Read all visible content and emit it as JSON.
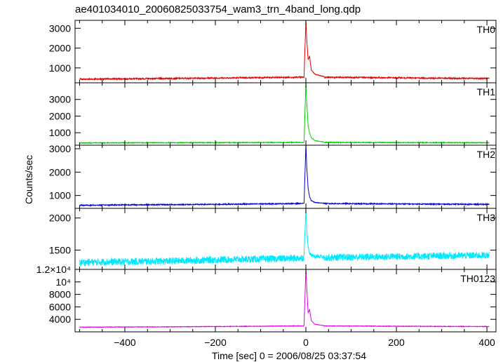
{
  "chart_data": {
    "type": "line",
    "title": "ae401034010_20060825033754_wam3_trn_4band_long.qdp",
    "xlabel": "Time [sec] 0 = 2006/08/25 03:37:54",
    "ylabel": "Counts/sec",
    "xlim": [
      -510,
      420
    ],
    "x_ticks": [
      -400,
      -200,
      0,
      200,
      400
    ],
    "x_tick_labels": [
      "−400",
      "−200",
      "0",
      "200",
      "400"
    ],
    "grid": false,
    "panels": [
      {
        "label": "TH0",
        "color": "#e00000",
        "ylim": [
          250,
          3400
        ],
        "y_ticks": [
          1000,
          2000,
          3000
        ],
        "y_tick_labels": [
          "1000",
          "2000",
          "3000"
        ],
        "background": {
          "x": [
            -500,
            -400,
            -300,
            -200,
            -100,
            0,
            100,
            200,
            300,
            405
          ],
          "y": [
            430,
            450,
            470,
            490,
            510,
            530,
            520,
            500,
            480,
            470
          ]
        },
        "noise": 35,
        "peak": {
          "x": [
            -4,
            0,
            2,
            5,
            8,
            12,
            20,
            40
          ],
          "y": [
            600,
            3400,
            2400,
            1400,
            1600,
            900,
            680,
            560
          ]
        }
      },
      {
        "label": "TH1",
        "color": "#00d000",
        "ylim": [
          250,
          4000
        ],
        "y_ticks": [
          1000,
          2000,
          3000
        ],
        "y_tick_labels": [
          "1000",
          "2000",
          "3000"
        ],
        "background": {
          "x": [
            -500,
            -400,
            -300,
            -200,
            -100,
            0,
            100,
            200,
            300,
            405
          ],
          "y": [
            390,
            395,
            400,
            405,
            410,
            420,
            415,
            410,
            405,
            400
          ]
        },
        "noise": 25,
        "peak": {
          "x": [
            -4,
            0,
            2,
            5,
            8,
            12,
            20,
            40
          ],
          "y": [
            500,
            4000,
            2800,
            1400,
            1000,
            700,
            520,
            450
          ]
        }
      },
      {
        "label": "TH2",
        "color": "#0000d0",
        "ylim": [
          450,
          3150
        ],
        "y_ticks": [
          1000,
          2000,
          3000
        ],
        "y_tick_labels": [
          "1000",
          "2000",
          "3000"
        ],
        "background": {
          "x": [
            -500,
            -400,
            -300,
            -200,
            -100,
            0,
            100,
            200,
            300,
            405
          ],
          "y": [
            580,
            600,
            610,
            620,
            640,
            660,
            650,
            640,
            630,
            620
          ]
        },
        "noise": 22,
        "peak": {
          "x": [
            -4,
            0,
            2,
            5,
            8,
            12,
            20,
            40
          ],
          "y": [
            700,
            3150,
            2200,
            1300,
            950,
            780,
            700,
            670
          ]
        }
      },
      {
        "label": "TH3",
        "color": "#00e8ff",
        "ylim": [
          1200,
          2150
        ],
        "y_ticks": [
          1500,
          2000
        ],
        "y_tick_labels": [
          "1500",
          "2000"
        ],
        "background": {
          "x": [
            -500,
            -400,
            -300,
            -200,
            -100,
            0,
            100,
            200,
            300,
            405
          ],
          "y": [
            1310,
            1320,
            1330,
            1350,
            1360,
            1380,
            1390,
            1400,
            1410,
            1420
          ]
        },
        "noise": 55,
        "peak": {
          "x": [
            -4,
            0,
            2,
            5,
            8,
            12,
            20,
            40
          ],
          "y": [
            1450,
            2150,
            1800,
            1550,
            1450,
            1420,
            1400,
            1390
          ]
        }
      },
      {
        "label": "TH0123",
        "color": "#e000e0",
        "ylim": [
          2000,
          12000
        ],
        "y_ticks": [
          4000,
          6000,
          8000,
          10000,
          12000
        ],
        "y_tick_labels": [
          "4000",
          "6000",
          "8000",
          "10⁴",
          "1.2×10⁴"
        ],
        "background": {
          "x": [
            -500,
            -400,
            -300,
            -200,
            -100,
            0,
            100,
            200,
            300,
            405
          ],
          "y": [
            2750,
            2780,
            2800,
            2850,
            2900,
            2950,
            2930,
            2900,
            2870,
            2850
          ]
        },
        "noise": 45,
        "peak": {
          "x": [
            -4,
            0,
            2,
            5,
            8,
            12,
            20,
            40
          ],
          "y": [
            3200,
            12000,
            9000,
            5000,
            5600,
            3800,
            3200,
            3000
          ]
        }
      }
    ]
  }
}
